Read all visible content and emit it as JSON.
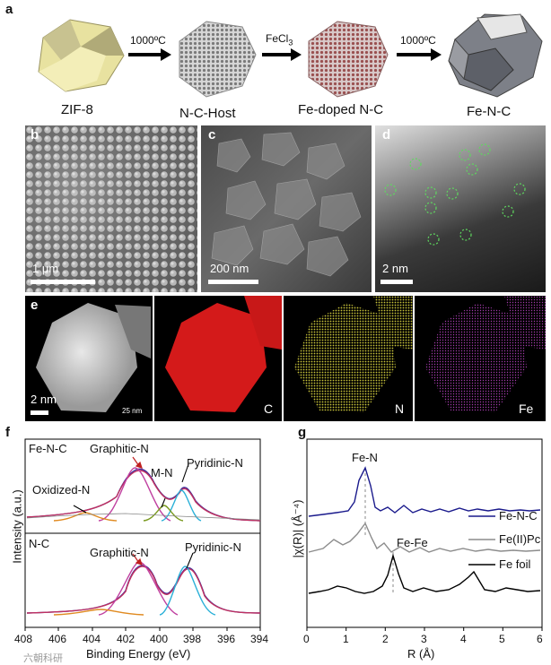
{
  "panel_a": {
    "label": "a",
    "stages": [
      "ZIF-8",
      "N-C-Host",
      "Fe-doped N-C",
      "Fe-N-C"
    ],
    "arrows": [
      "1000ºC",
      "FeCl3",
      "1000ºC"
    ]
  },
  "panel_b": {
    "label": "b",
    "scale": "1 μm"
  },
  "panel_c": {
    "label": "c",
    "scale": "200 nm"
  },
  "panel_d": {
    "label": "d",
    "scale": "2 nm"
  },
  "panel_e": {
    "label": "e",
    "scale": "2 nm",
    "inset_scale": "25 nm",
    "elements": [
      "C",
      "N",
      "Fe"
    ]
  },
  "panel_f": {
    "label": "f",
    "top_sample": "Fe-N-C",
    "bottom_sample": "N-C",
    "peaks_top": [
      "Oxidized-N",
      "Graphitic-N",
      "M-N",
      "Pyridinic-N"
    ],
    "peaks_bottom": [
      "Graphitic-N",
      "Pyridinic-N"
    ],
    "xlabel": "Binding Energy (eV)",
    "ylabel": "Intensity (a.u.)",
    "xticks": [
      "408",
      "406",
      "404",
      "402",
      "400",
      "398",
      "396",
      "394"
    ]
  },
  "panel_g": {
    "label": "g",
    "ylabel": "|χ(R)| (Å⁻⁴)",
    "xlabel": "R (Å)",
    "xticks": [
      "0",
      "1",
      "2",
      "3",
      "4",
      "5",
      "6"
    ],
    "annotations": [
      "Fe-N",
      "Fe-Fe"
    ],
    "legend": [
      "Fe-N-C",
      "Fe(II)Pc",
      "Fe foil"
    ]
  },
  "watermark": "六朝科研",
  "chart_data": [
    {
      "type": "line",
      "title": "",
      "xlabel": "Binding Energy (eV)",
      "ylabel": "Intensity (a.u.)",
      "xlim": [
        408,
        394
      ],
      "panels": [
        {
          "name": "Fe-N-C",
          "peaks": [
            {
              "label": "Oxidized-N",
              "x": 403.0
            },
            {
              "label": "Graphitic-N",
              "x": 401.1
            },
            {
              "label": "M-N",
              "x": 399.8
            },
            {
              "label": "Pyridinic-N",
              "x": 398.5
            }
          ]
        },
        {
          "name": "N-C",
          "peaks": [
            {
              "label": "Graphitic-N",
              "x": 401.1
            },
            {
              "label": "Pyridinic-N",
              "x": 398.6
            }
          ]
        }
      ]
    },
    {
      "type": "line",
      "title": "",
      "xlabel": "R (Å)",
      "ylabel": "|χ(R)| (Å⁻⁴)",
      "xlim": [
        0,
        6
      ],
      "series": [
        {
          "name": "Fe-N-C",
          "color": "#1a1a8c",
          "main_peak_R": 1.5
        },
        {
          "name": "Fe(II)Pc",
          "color": "#8c8c8c",
          "main_peak_R": 1.5
        },
        {
          "name": "Fe foil",
          "color": "#000000",
          "main_peak_R": 2.2
        }
      ],
      "annotations": [
        {
          "text": "Fe-N",
          "x": 1.5
        },
        {
          "text": "Fe-Fe",
          "x": 2.2
        }
      ]
    }
  ]
}
